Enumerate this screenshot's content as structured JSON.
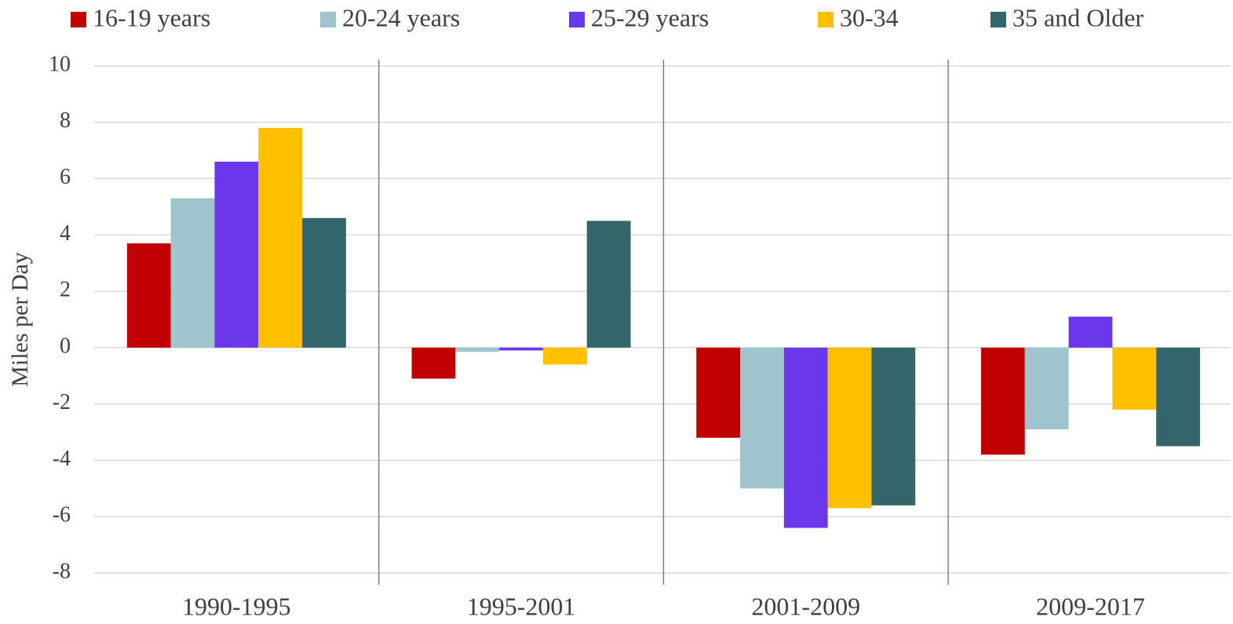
{
  "chart_data": {
    "type": "bar",
    "y_label": "Miles per Day",
    "categories": [
      "1990-1995",
      "1995-2001",
      "2001-2009",
      "2009-2017"
    ],
    "series": [
      {
        "name": "16-19 years",
        "color": "#c00000",
        "values": [
          3.7,
          -1.1,
          -3.2,
          -3.8
        ]
      },
      {
        "name": "20-24 years",
        "color": "#9fc5cc",
        "values": [
          5.3,
          -0.15,
          -5.0,
          -2.9
        ]
      },
      {
        "name": "25-29 years",
        "color": "#6a38ea",
        "values": [
          6.6,
          -0.1,
          -6.4,
          1.1
        ]
      },
      {
        "name": "30-34",
        "color": "#ffc000",
        "values": [
          7.8,
          -0.6,
          -5.7,
          -2.2
        ]
      },
      {
        "name": "35 and Older",
        "color": "#336669",
        "values": [
          4.6,
          4.5,
          -5.6,
          -3.5
        ]
      }
    ],
    "ylim": [
      -8,
      10
    ],
    "yticks": [
      -8,
      -6,
      -4,
      -2,
      0,
      2,
      4,
      6,
      8,
      10
    ],
    "grid": true,
    "legend": "top"
  }
}
